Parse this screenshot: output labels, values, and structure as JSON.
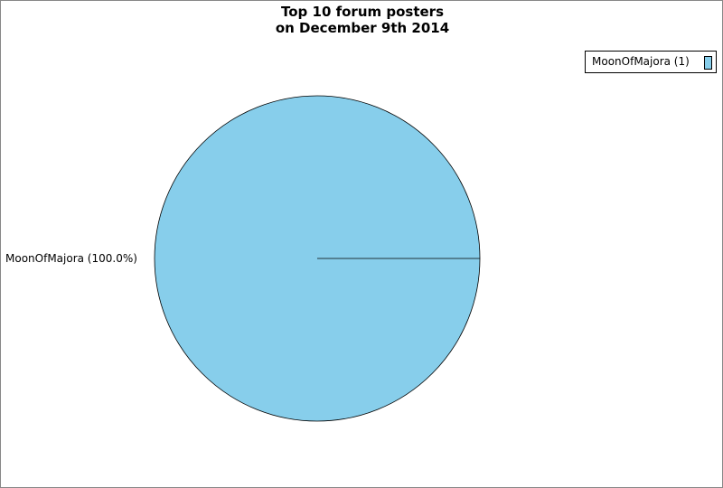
{
  "chart_data": {
    "type": "pie",
    "title_lines": [
      "Top 10 forum posters",
      "on December 9th 2014"
    ],
    "slices": [
      {
        "name": "MoonOfMajora",
        "value": 1,
        "percent_label": "MoonOfMajora (100.0%)",
        "legend_label": "MoonOfMajora (1)",
        "color": "#87ceeb"
      }
    ],
    "legend_position": "top-right"
  }
}
